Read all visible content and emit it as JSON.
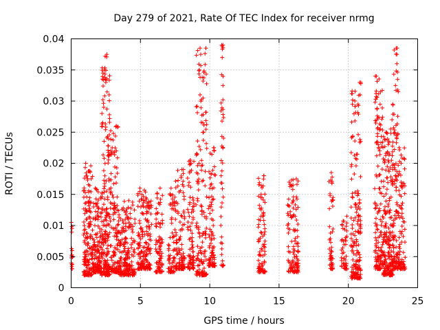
{
  "chart_data": {
    "type": "scatter",
    "title": "Day 279 of 2021, Rate Of TEC Index for receiver nrmg",
    "xlabel": "GPS time / hours",
    "ylabel": "ROTI / TECUs",
    "xlim": [
      0,
      25
    ],
    "ylim": [
      0,
      0.04
    ],
    "x_ticks": [
      "0",
      "5",
      "10",
      "15",
      "20",
      "25"
    ],
    "y_ticks": [
      "0",
      "0.005",
      "0.01",
      "0.015",
      "0.02",
      "0.025",
      "0.03",
      "0.035",
      "0.04"
    ],
    "grid": true,
    "marker": "+",
    "series_color": "#ff0000",
    "clusters": [
      {
        "x_start": 0.0,
        "x_end": 0.1,
        "y_low": 0.003,
        "y_high": 0.0105,
        "count": 15
      },
      {
        "x_start": 0.9,
        "x_end": 1.6,
        "y_low": 0.002,
        "y_high": 0.02,
        "count": 170
      },
      {
        "x_start": 1.6,
        "x_end": 2.2,
        "y_low": 0.0025,
        "y_high": 0.016,
        "count": 140
      },
      {
        "x_start": 2.2,
        "x_end": 2.8,
        "y_low": 0.002,
        "y_high": 0.0375,
        "count": 200
      },
      {
        "x_start": 2.8,
        "x_end": 3.4,
        "y_low": 0.0025,
        "y_high": 0.026,
        "count": 120
      },
      {
        "x_start": 3.4,
        "x_end": 4.6,
        "y_low": 0.002,
        "y_high": 0.014,
        "count": 220
      },
      {
        "x_start": 4.8,
        "x_end": 5.8,
        "y_low": 0.003,
        "y_high": 0.016,
        "count": 170
      },
      {
        "x_start": 6.1,
        "x_end": 6.6,
        "y_low": 0.0025,
        "y_high": 0.016,
        "count": 80
      },
      {
        "x_start": 7.0,
        "x_end": 7.5,
        "y_low": 0.0025,
        "y_high": 0.016,
        "count": 70
      },
      {
        "x_start": 7.5,
        "x_end": 8.2,
        "y_low": 0.003,
        "y_high": 0.019,
        "count": 110
      },
      {
        "x_start": 8.4,
        "x_end": 8.9,
        "y_low": 0.003,
        "y_high": 0.0205,
        "count": 80
      },
      {
        "x_start": 9.0,
        "x_end": 9.8,
        "y_low": 0.002,
        "y_high": 0.0385,
        "count": 150
      },
      {
        "x_start": 9.9,
        "x_end": 10.4,
        "y_low": 0.0035,
        "y_high": 0.0225,
        "count": 90
      },
      {
        "x_start": 10.8,
        "x_end": 11.0,
        "y_low": 0.0035,
        "y_high": 0.039,
        "count": 40
      },
      {
        "x_start": 13.5,
        "x_end": 14.0,
        "y_low": 0.0025,
        "y_high": 0.018,
        "count": 90
      },
      {
        "x_start": 15.6,
        "x_end": 16.4,
        "y_low": 0.0025,
        "y_high": 0.0175,
        "count": 120
      },
      {
        "x_start": 18.6,
        "x_end": 18.9,
        "y_low": 0.003,
        "y_high": 0.0185,
        "count": 50
      },
      {
        "x_start": 19.5,
        "x_end": 19.9,
        "y_low": 0.003,
        "y_high": 0.0115,
        "count": 50
      },
      {
        "x_start": 20.2,
        "x_end": 20.9,
        "y_low": 0.0015,
        "y_high": 0.033,
        "count": 170
      },
      {
        "x_start": 21.9,
        "x_end": 22.5,
        "y_low": 0.003,
        "y_high": 0.034,
        "count": 150
      },
      {
        "x_start": 22.5,
        "x_end": 23.2,
        "y_low": 0.002,
        "y_high": 0.025,
        "count": 200
      },
      {
        "x_start": 23.2,
        "x_end": 23.6,
        "y_low": 0.003,
        "y_high": 0.0385,
        "count": 110
      },
      {
        "x_start": 23.6,
        "x_end": 24.1,
        "y_low": 0.003,
        "y_high": 0.0225,
        "count": 90
      }
    ],
    "outliers": [
      {
        "x": 2.3,
        "y": 0.0345
      },
      {
        "x": 2.45,
        "y": 0.0372
      },
      {
        "x": 2.4,
        "y": 0.035
      },
      {
        "x": 2.5,
        "y": 0.033
      },
      {
        "x": 2.35,
        "y": 0.029
      },
      {
        "x": 3.35,
        "y": 0.0258
      },
      {
        "x": 9.3,
        "y": 0.0385
      },
      {
        "x": 9.35,
        "y": 0.0375
      },
      {
        "x": 9.25,
        "y": 0.035
      },
      {
        "x": 9.3,
        "y": 0.031
      },
      {
        "x": 9.5,
        "y": 0.0265
      },
      {
        "x": 9.55,
        "y": 0.025
      },
      {
        "x": 10.95,
        "y": 0.039
      },
      {
        "x": 10.9,
        "y": 0.037
      },
      {
        "x": 10.95,
        "y": 0.0325
      },
      {
        "x": 10.95,
        "y": 0.0302
      },
      {
        "x": 20.9,
        "y": 0.0328
      },
      {
        "x": 20.85,
        "y": 0.031
      },
      {
        "x": 20.7,
        "y": 0.0295
      },
      {
        "x": 21.95,
        "y": 0.034
      },
      {
        "x": 23.45,
        "y": 0.0385
      },
      {
        "x": 23.5,
        "y": 0.0375
      },
      {
        "x": 23.5,
        "y": 0.036
      },
      {
        "x": 23.55,
        "y": 0.0335
      },
      {
        "x": 23.4,
        "y": 0.0325
      },
      {
        "x": 23.6,
        "y": 0.0315
      },
      {
        "x": 23.15,
        "y": 0.027
      },
      {
        "x": 23.05,
        "y": 0.0255
      },
      {
        "x": 10.3,
        "y": 0.0225
      },
      {
        "x": 8.6,
        "y": 0.0205
      },
      {
        "x": 8.1,
        "y": 0.019
      },
      {
        "x": 15.9,
        "y": 0.0173
      },
      {
        "x": 13.9,
        "y": 0.018
      }
    ]
  }
}
